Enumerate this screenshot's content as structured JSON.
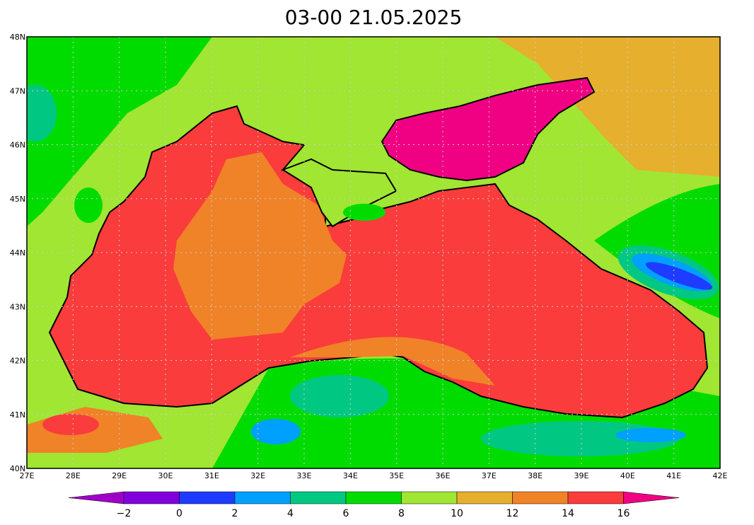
{
  "map": {
    "title": "03-00     21.05.2025",
    "lat_ticks": [
      {
        "value": 40,
        "label": "40N"
      },
      {
        "value": 41,
        "label": "41N"
      },
      {
        "value": 42,
        "label": "42N"
      },
      {
        "value": 43,
        "label": "43N"
      },
      {
        "value": 44,
        "label": "44N"
      },
      {
        "value": 45,
        "label": "45N"
      },
      {
        "value": 46,
        "label": "46N"
      },
      {
        "value": 47,
        "label": "47N"
      },
      {
        "value": 48,
        "label": "48N"
      }
    ],
    "lon_ticks": [
      {
        "value": 27,
        "label": "27E"
      },
      {
        "value": 28,
        "label": "28E"
      },
      {
        "value": 29,
        "label": "29E"
      },
      {
        "value": 30,
        "label": "30E"
      },
      {
        "value": 31,
        "label": "31E"
      },
      {
        "value": 32,
        "label": "32E"
      },
      {
        "value": 33,
        "label": "33E"
      },
      {
        "value": 34,
        "label": "34E"
      },
      {
        "value": 35,
        "label": "35E"
      },
      {
        "value": 36,
        "label": "36E"
      },
      {
        "value": 37,
        "label": "37E"
      },
      {
        "value": 38,
        "label": "38E"
      },
      {
        "value": 39,
        "label": "39E"
      },
      {
        "value": 40,
        "label": "40E"
      },
      {
        "value": 41,
        "label": "41E"
      },
      {
        "value": 42,
        "label": "42E"
      }
    ],
    "latlim": [
      40,
      48
    ],
    "lonlim": [
      27,
      42
    ],
    "colorbar": {
      "levels": [
        {
          "value": -2,
          "label": "−2"
        },
        0,
        2,
        4,
        6,
        8,
        10,
        12,
        14,
        16
      ],
      "colors": [
        "#a000c8",
        "#8200dc",
        "#1e3cff",
        "#00a0ff",
        "#00c882",
        "#00dc00",
        "#a0e632",
        "#e6af2d",
        "#f08228",
        "#fa3c3c",
        "#f00082"
      ]
    }
  }
}
